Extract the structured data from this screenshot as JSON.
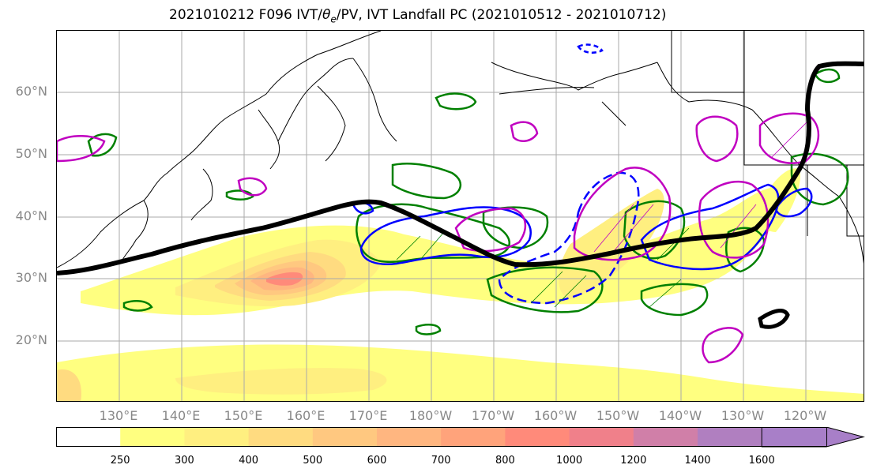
{
  "title": {
    "prefix": "2021010212 F096 IVT/",
    "theta": "θ",
    "theta_sub": "e",
    "suffix": "/PV, IVT Landfall PC (2021010512 - 2021010712)"
  },
  "latitude_labels": [
    "60°N",
    "50°N",
    "40°N",
    "30°N",
    "20°N"
  ],
  "longitude_labels": [
    "130°E",
    "140°E",
    "150°E",
    "160°E",
    "170°E",
    "180°W",
    "170°W",
    "160°W",
    "150°W",
    "140°W",
    "130°W",
    "120°W"
  ],
  "colorbar": {
    "ticks": [
      "250",
      "300",
      "400",
      "500",
      "600",
      "700",
      "800",
      "1000",
      "1200",
      "1400",
      "1600"
    ],
    "colors": [
      "#ffffff",
      "#ffff80",
      "#ffef80",
      "#ffdb80",
      "#ffc880",
      "#ffb680",
      "#ffa37b",
      "#ff8a7a",
      "#f0808a",
      "#d07fa8",
      "#b07fc0",
      "#a87fc8"
    ],
    "extend": "max"
  },
  "colors": {
    "coastline": "#000000",
    "grid": "#aaaaaa",
    "jet_line": "#000000",
    "pv_contour": "#008000",
    "theta_contour": "#0000ff",
    "magenta_contour": "#c000c0"
  }
}
